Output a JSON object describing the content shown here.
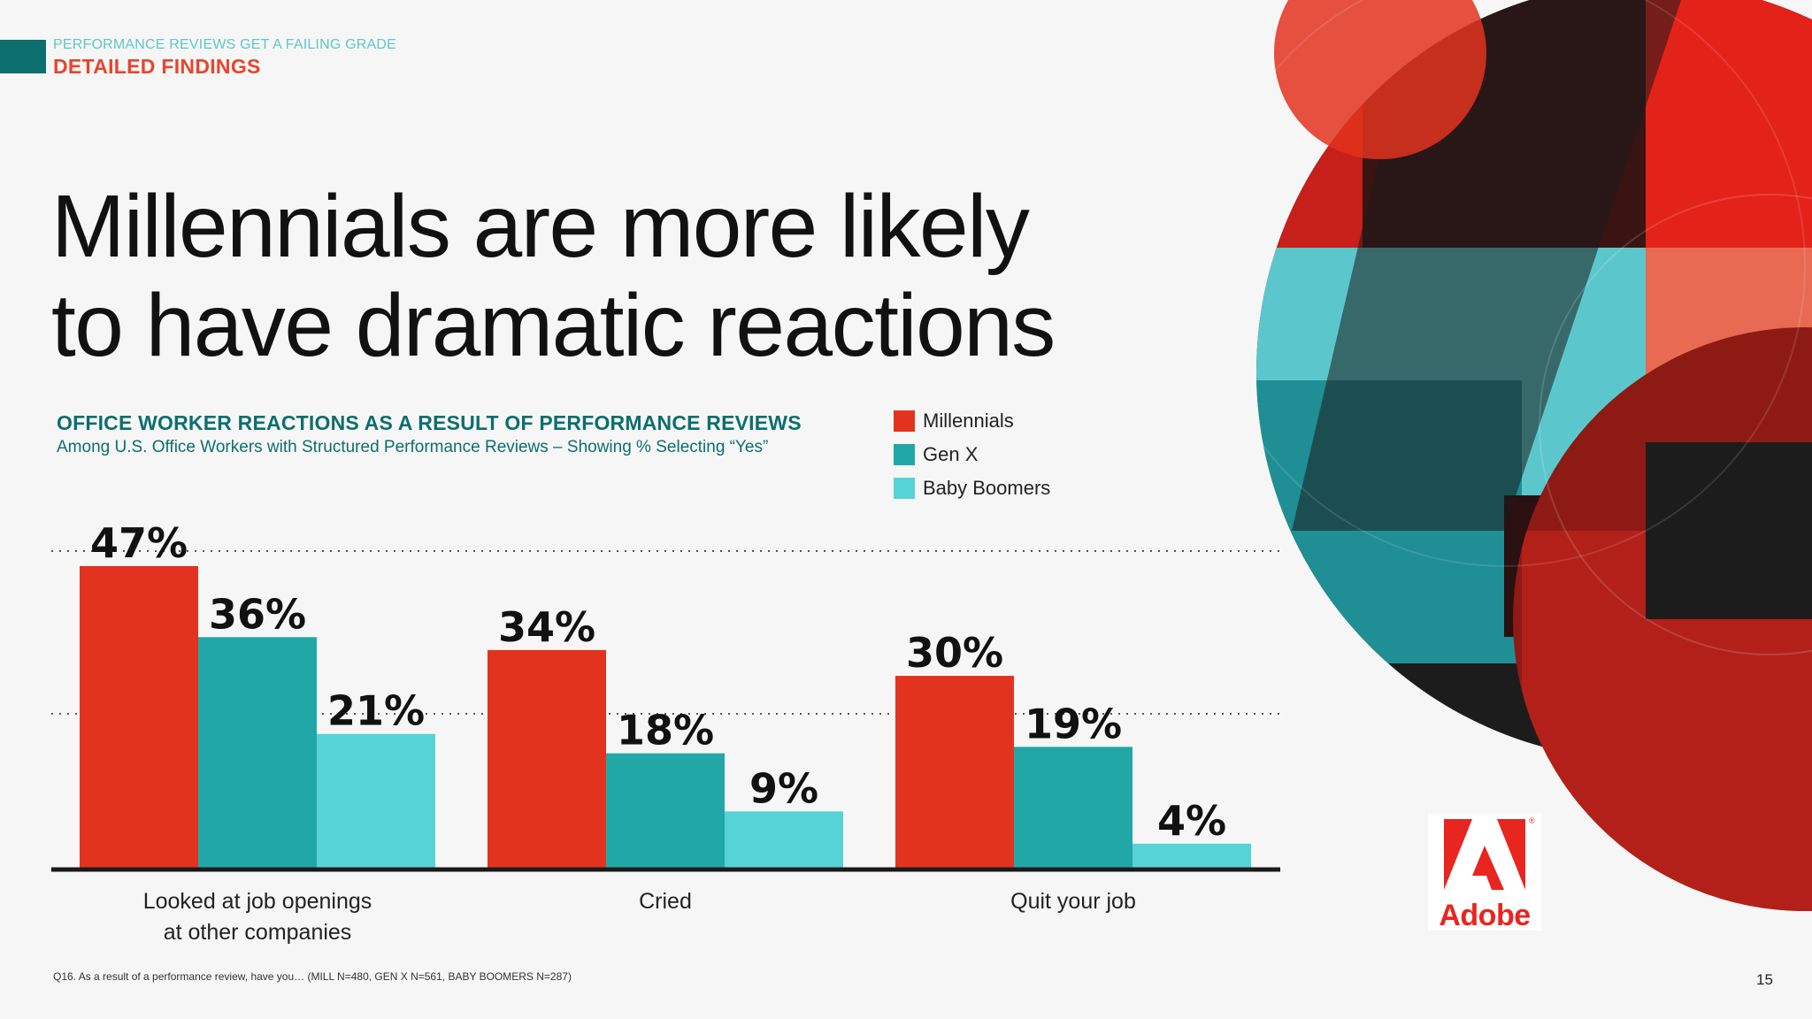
{
  "header": {
    "eyebrow": "PERFORMANCE REVIEWS GET A FAILING GRADE",
    "section": "DETAILED FINDINGS"
  },
  "headline": {
    "line1": "Millennials are more likely",
    "line2": "to have dramatic reactions"
  },
  "chart_data": {
    "type": "bar",
    "title": "OFFICE WORKER REACTIONS AS A RESULT OF PERFORMANCE REVIEWS",
    "subtitle": "Among U.S. Office Workers with Structured Performance Reviews – Showing % Selecting “Yes”",
    "categories": [
      [
        "Looked at job openings",
        "at other companies"
      ],
      [
        "Cried"
      ],
      [
        "Quit your job"
      ]
    ],
    "series": [
      {
        "name": "Millennials",
        "values": [
          47,
          34,
          30
        ],
        "labels": [
          "47%",
          "34%",
          "30%"
        ],
        "color": "#e2331f"
      },
      {
        "name": "Gen X",
        "values": [
          36,
          18,
          19
        ],
        "labels": [
          "36%",
          "18%",
          "19%"
        ],
        "color": "#22a7a7"
      },
      {
        "name": "Baby Boomers",
        "values": [
          21,
          9,
          4
        ],
        "labels": [
          "21%",
          "9%",
          "4%"
        ],
        "color": "#56d3d6"
      }
    ],
    "ylim": [
      0,
      48
    ],
    "gridlines": [
      25,
      50
    ],
    "legend_position": "top-right",
    "xlabel": "",
    "ylabel": ""
  },
  "footnote": "Q16. As a result of a performance review, have you… (MILL N=480, GEN X N=561, BABY BOOMERS N=287)",
  "page_number": "15",
  "logo": {
    "text": "Adobe",
    "reg": "®"
  },
  "colors": {
    "teal_dark": "#0d6e6e",
    "accent_red": "#e8452c",
    "eyebrow_teal": "#5fc6c9"
  }
}
